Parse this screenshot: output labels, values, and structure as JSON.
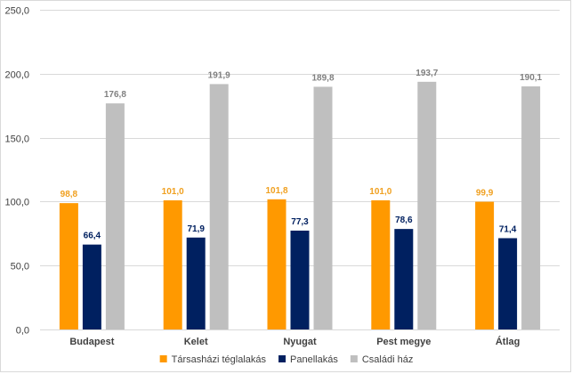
{
  "chart_data": {
    "type": "bar",
    "categories": [
      "Budapest",
      "Kelet",
      "Nyugat",
      "Pest megye",
      "Átlag"
    ],
    "series": [
      {
        "name": "Társasházi téglalakás",
        "color": "#ff9900",
        "label_color": "#f0a020",
        "values": [
          98.8,
          101.0,
          101.8,
          101.0,
          99.9
        ],
        "labels": [
          "98,8",
          "101,0",
          "101,8",
          "101,0",
          "99,9"
        ]
      },
      {
        "name": "Panellakás",
        "color": "#002060",
        "label_color": "#002060",
        "values": [
          66.4,
          71.9,
          77.3,
          78.6,
          71.4
        ],
        "labels": [
          "66,4",
          "71,9",
          "77,3",
          "78,6",
          "71,4"
        ]
      },
      {
        "name": "Családi ház",
        "color": "#bfbfbf",
        "label_color": "#808080",
        "values": [
          176.8,
          191.9,
          189.8,
          193.7,
          190.1
        ],
        "labels": [
          "176,8",
          "191,9",
          "189,8",
          "193,7",
          "190,1"
        ]
      }
    ],
    "ylim": [
      0,
      250
    ],
    "yticks": [
      0,
      50,
      100,
      150,
      200,
      250
    ],
    "ytick_labels": [
      "0,0",
      "50,0",
      "100,0",
      "150,0",
      "200,0",
      "250,0"
    ],
    "grid": true,
    "legend_position": "bottom",
    "title": "",
    "xlabel": "",
    "ylabel": ""
  }
}
